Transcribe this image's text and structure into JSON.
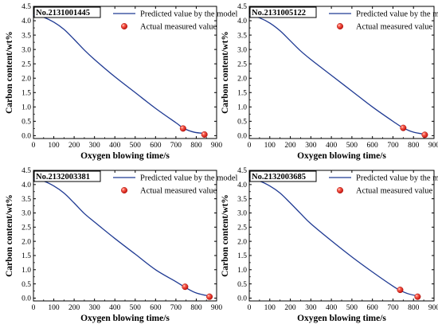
{
  "chart_data": [
    {
      "type": "line",
      "panel_id": "No.2131001445",
      "xlabel": "Oxygen blowing time/s",
      "ylabel": "Carbon content/wt%",
      "xlim": [
        0,
        900
      ],
      "ylim": [
        -0.1,
        4.5
      ],
      "xticks": [
        "0",
        "100",
        "200",
        "300",
        "400",
        "500",
        "600",
        "700",
        "800",
        "900"
      ],
      "yticks": [
        "0.0",
        "0.5",
        "1.0",
        "1.5",
        "2.0",
        "2.5",
        "3.0",
        "3.5",
        "4.0",
        "4.5"
      ],
      "legend_position": "top-right",
      "series": [
        {
          "name": "Predicted value by the model",
          "style": "line",
          "color": "#1f3a93",
          "x": [
            0,
            50,
            100,
            150,
            200,
            250,
            300,
            400,
            500,
            600,
            700,
            740,
            790,
            840
          ],
          "y": [
            4.2,
            4.12,
            3.95,
            3.7,
            3.35,
            2.98,
            2.65,
            2.05,
            1.5,
            0.95,
            0.45,
            0.25,
            0.12,
            0.08
          ]
        },
        {
          "name": "Actual measured value",
          "style": "scatter",
          "color": "#e8251f",
          "x": [
            735,
            840
          ],
          "y": [
            0.25,
            0.04
          ]
        }
      ]
    },
    {
      "type": "line",
      "panel_id": "No.2131005122",
      "xlabel": "Oxygen blowing time/s",
      "ylabel": "Carbon content/wt%",
      "xlim": [
        0,
        900
      ],
      "ylim": [
        -0.1,
        4.5
      ],
      "xticks": [
        "0",
        "100",
        "200",
        "300",
        "400",
        "500",
        "600",
        "700",
        "800",
        "900"
      ],
      "yticks": [
        "0.0",
        "0.5",
        "1.0",
        "1.5",
        "2.0",
        "2.5",
        "3.0",
        "3.5",
        "4.0",
        "4.5"
      ],
      "legend_position": "top-right",
      "series": [
        {
          "name": "Predicted value by the model",
          "style": "line",
          "color": "#1f3a93",
          "x": [
            0,
            50,
            100,
            150,
            200,
            250,
            300,
            400,
            500,
            600,
            700,
            750,
            800,
            855
          ],
          "y": [
            4.2,
            4.1,
            3.92,
            3.65,
            3.3,
            2.95,
            2.65,
            2.1,
            1.55,
            1.0,
            0.5,
            0.27,
            0.12,
            0.05
          ]
        },
        {
          "name": "Actual measured value",
          "style": "scatter",
          "color": "#e8251f",
          "x": [
            750,
            855
          ],
          "y": [
            0.27,
            0.03
          ]
        }
      ]
    },
    {
      "type": "line",
      "panel_id": "No.2132003381",
      "xlabel": "Oxygen blowing time/s",
      "ylabel": "Carbon content/wt%",
      "xlim": [
        0,
        900
      ],
      "ylim": [
        -0.1,
        4.5
      ],
      "xticks": [
        "0",
        "100",
        "200",
        "300",
        "400",
        "500",
        "600",
        "700",
        "800",
        "900"
      ],
      "yticks": [
        "0.0",
        "0.5",
        "1.0",
        "1.5",
        "2.0",
        "2.5",
        "3.0",
        "3.5",
        "4.0",
        "4.5"
      ],
      "legend_position": "top-right",
      "series": [
        {
          "name": "Predicted value by the model",
          "style": "line",
          "color": "#1f3a93",
          "x": [
            0,
            50,
            100,
            150,
            200,
            250,
            300,
            400,
            500,
            600,
            700,
            745,
            800,
            865
          ],
          "y": [
            4.2,
            4.12,
            3.95,
            3.7,
            3.35,
            2.98,
            2.68,
            2.1,
            1.55,
            1.0,
            0.58,
            0.38,
            0.18,
            0.07
          ]
        },
        {
          "name": "Actual measured value",
          "style": "scatter",
          "color": "#e8251f",
          "x": [
            745,
            865
          ],
          "y": [
            0.4,
            0.05
          ]
        }
      ]
    },
    {
      "type": "line",
      "panel_id": "No.2132003685",
      "xlabel": "Oxygen blowing time/s",
      "ylabel": "Carbon content/wt%",
      "xlim": [
        0,
        900
      ],
      "ylim": [
        -0.1,
        4.5
      ],
      "xticks": [
        "0",
        "100",
        "200",
        "300",
        "400",
        "500",
        "600",
        "700",
        "800",
        "900"
      ],
      "yticks": [
        "0.0",
        "0.5",
        "1.0",
        "1.5",
        "2.0",
        "2.5",
        "3.0",
        "3.5",
        "4.0",
        "4.5"
      ],
      "legend_position": "top-right",
      "series": [
        {
          "name": "Predicted value by the model",
          "style": "line",
          "color": "#1f3a93",
          "x": [
            0,
            50,
            100,
            150,
            200,
            250,
            300,
            400,
            500,
            600,
            700,
            735,
            780,
            820
          ],
          "y": [
            4.2,
            4.12,
            3.95,
            3.7,
            3.35,
            2.98,
            2.62,
            2.02,
            1.45,
            0.92,
            0.42,
            0.27,
            0.14,
            0.08
          ]
        },
        {
          "name": "Actual measured value",
          "style": "scatter",
          "color": "#e8251f",
          "x": [
            735,
            820
          ],
          "y": [
            0.29,
            0.05
          ]
        }
      ]
    }
  ]
}
